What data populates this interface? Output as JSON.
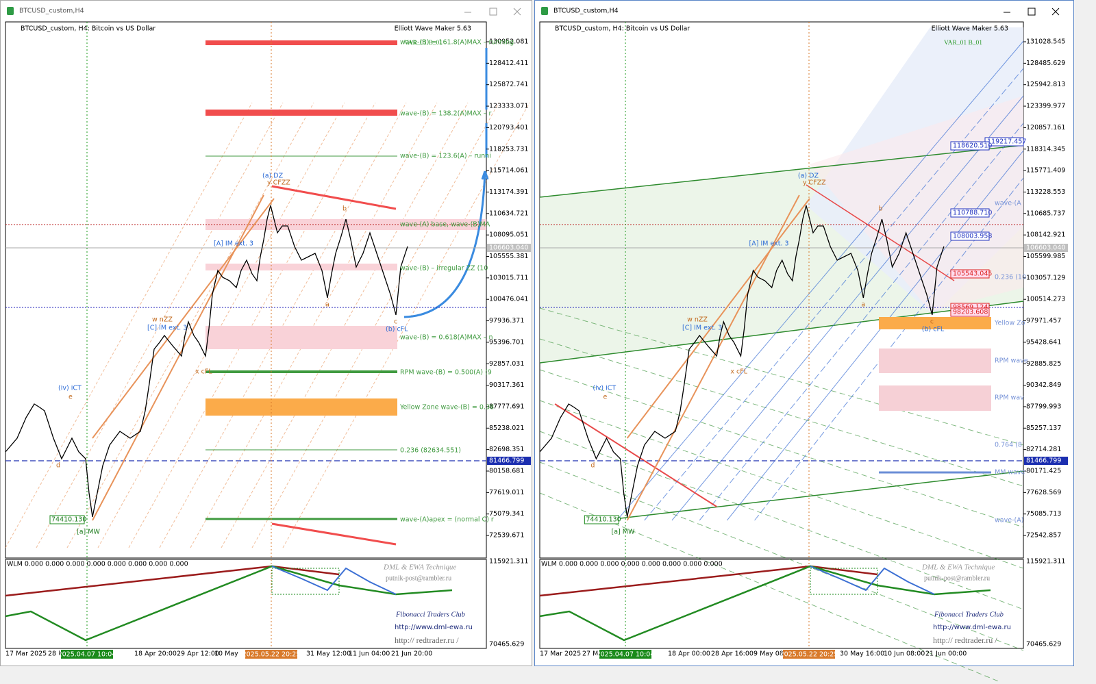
{
  "windows": [
    {
      "title": "BTCUSD_custom,H4",
      "header": "BTCUSD_custom, H4:  Bitcoin vs US Dollar",
      "indicator": "Elliott Wave Maker 5.63",
      "variant": "VAR_01 B_01",
      "prices": [
        "130952.081",
        "128412.411",
        "125872.741",
        "123333.071",
        "120793.401",
        "118253.731",
        "115714.061",
        "113174.391",
        "110634.721",
        "108095.051",
        "105555.381",
        "103015.711",
        "100476.041",
        "97936.371",
        "95396.701",
        "92857.031",
        "90317.361",
        "87777.691",
        "85238.021",
        "82698.351",
        "80158.681",
        "77619.011",
        "75079.341",
        "72539.671"
      ],
      "price_current": "106603.040",
      "price_level": "81466.799",
      "dates": [
        "17 Mar 2025",
        "28 M",
        "18 Apr 20:00",
        "29 Apr 12:00",
        "10 May",
        "31 May 12:00",
        "11 Jun 04:00",
        "21 Jun 20:00"
      ],
      "date_cursor": "2025.04.07 10:04",
      "date_event": "2025.05.22 20:25",
      "levels": [
        "wave-(B) = 161.8(A)MAX – running",
        "wave-(B) = 138.2(A)MAX – r",
        "wave-(B) = 123.6(A) – runni",
        "wave-(A) base, wave-(B)MA",
        "wave-(B) – irregular ZZ (10",
        "wave-(B) = 0.618(A)MAX – n",
        "RPM wave-(B) = 0.500(A) (9",
        "Yellow Zone wave-(B) = 0.38",
        "0.236 (82634.551)",
        "wave-(A)apex = (normal C) r"
      ],
      "boxes": [],
      "waves": [
        "(a) DZ",
        "y CFZZ",
        "(b) cFL",
        "[a] MW",
        "(iv) iCT",
        "w nZZ",
        "[C] IM ext. 3",
        "[A] IM ext. 3",
        "x cFL",
        "74410.130",
        "a",
        "b",
        "c",
        "e",
        "d"
      ],
      "wlm": "WLM 0.000 0.000 0.000 0.000 0.000 0.000 0.000 0.000",
      "wlm_high": "115921.311",
      "wlm_low": "70465.629",
      "credits": [
        "DML & EWA Technique",
        "putnik-post@rambler.ru",
        "Fibonacci    Traders    Club",
        "http://www.dml-ewa.ru",
        "http://  redtrader.ru  /"
      ]
    },
    {
      "title": "BTCUSD_custom,H4",
      "header": "BTCUSD_custom, H4:  Bitcoin vs US Dollar",
      "indicator": "Elliott Wave Maker 5.63",
      "variant": "VAR_01 B_01",
      "prices": [
        "131028.545",
        "128485.629",
        "125942.813",
        "123399.977",
        "120857.161",
        "118314.345",
        "115771.409",
        "113228.553",
        "110685.737",
        "108142.921",
        "105599.985",
        "103057.129",
        "100514.273",
        "97971.457",
        "95428.641",
        "92885.825",
        "90342.849",
        "87799.993",
        "85257.137",
        "82714.281",
        "80171.425",
        "77628.569",
        "75085.713",
        "72542.857"
      ],
      "price_current": "106603.040",
      "price_level": "81466.799",
      "dates": [
        "17 Mar 2025",
        "27 Ma",
        "18 Apr 00:00",
        "28 Apr 16:00",
        "9 May 08:",
        "30 May 16:00",
        "10 Jun 08:00",
        "21 Jun 00:00"
      ],
      "date_cursor": "2025.04.07 10:04",
      "date_event": "2025.05.22 20:25",
      "levels": [
        "wave-(A",
        "0.236 (10",
        "Yellow Zo",
        "RPM wave",
        "RPM wav",
        "0.764 (8",
        "MM wave",
        "wave-(A)"
      ],
      "boxes": [
        "119217.457",
        "118620.510",
        "110788.710",
        "108003.958",
        "105543.045",
        "98569.124",
        "98203.608"
      ],
      "waves": [
        "(a) DZ",
        "y CFZZ",
        "(b) cFL",
        "[a] MW",
        "(iv) iCT",
        "w nZZ",
        "[C] IM ext. 3",
        "[A] IM ext. 3",
        "x cFL",
        "74410.130",
        "a",
        "b",
        "c",
        "e",
        "d"
      ],
      "wlm": "WLM 0.000 0.000 0.000 0.000 0.000 0.000 0.000 0.000",
      "wlm_high": "115921.311",
      "wlm_low": "70465.629",
      "credits": [
        "DML & EWA Technique",
        "putnik-post@rambler.ru",
        "Fibonacci    Traders    Club",
        "http://www.dml-ewa.ru",
        "http://  redtrader.ru  /"
      ]
    }
  ]
}
